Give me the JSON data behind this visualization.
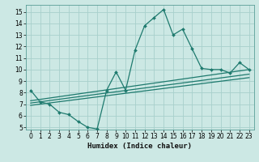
{
  "title": "",
  "xlabel": "Humidex (Indice chaleur)",
  "ylabel": "",
  "bg_color": "#cce8e4",
  "grid_color": "#a8d0cc",
  "line_color": "#1e7a6e",
  "xlim": [
    -0.5,
    23.5
  ],
  "ylim": [
    4.8,
    15.6
  ],
  "yticks": [
    5,
    6,
    7,
    8,
    9,
    10,
    11,
    12,
    13,
    14,
    15
  ],
  "xticks": [
    0,
    1,
    2,
    3,
    4,
    5,
    6,
    7,
    8,
    9,
    10,
    11,
    12,
    13,
    14,
    15,
    16,
    17,
    18,
    19,
    20,
    21,
    22,
    23
  ],
  "series1_x": [
    0,
    1,
    2,
    3,
    4,
    5,
    6,
    7,
    8,
    9,
    10,
    11,
    12,
    13,
    14,
    15,
    16,
    17,
    18,
    19,
    20,
    21,
    22,
    23
  ],
  "series1_y": [
    8.2,
    7.2,
    7.0,
    6.3,
    6.1,
    5.5,
    5.0,
    4.85,
    8.2,
    9.8,
    8.2,
    11.7,
    13.8,
    14.5,
    15.2,
    13.0,
    13.5,
    11.8,
    10.1,
    10.0,
    10.0,
    9.7,
    10.6,
    10.0
  ],
  "series2_x": [
    0,
    23
  ],
  "series2_y": [
    7.3,
    10.0
  ],
  "series3_x": [
    0,
    23
  ],
  "series3_y": [
    7.1,
    9.6
  ],
  "series4_x": [
    0,
    23
  ],
  "series4_y": [
    6.9,
    9.3
  ]
}
